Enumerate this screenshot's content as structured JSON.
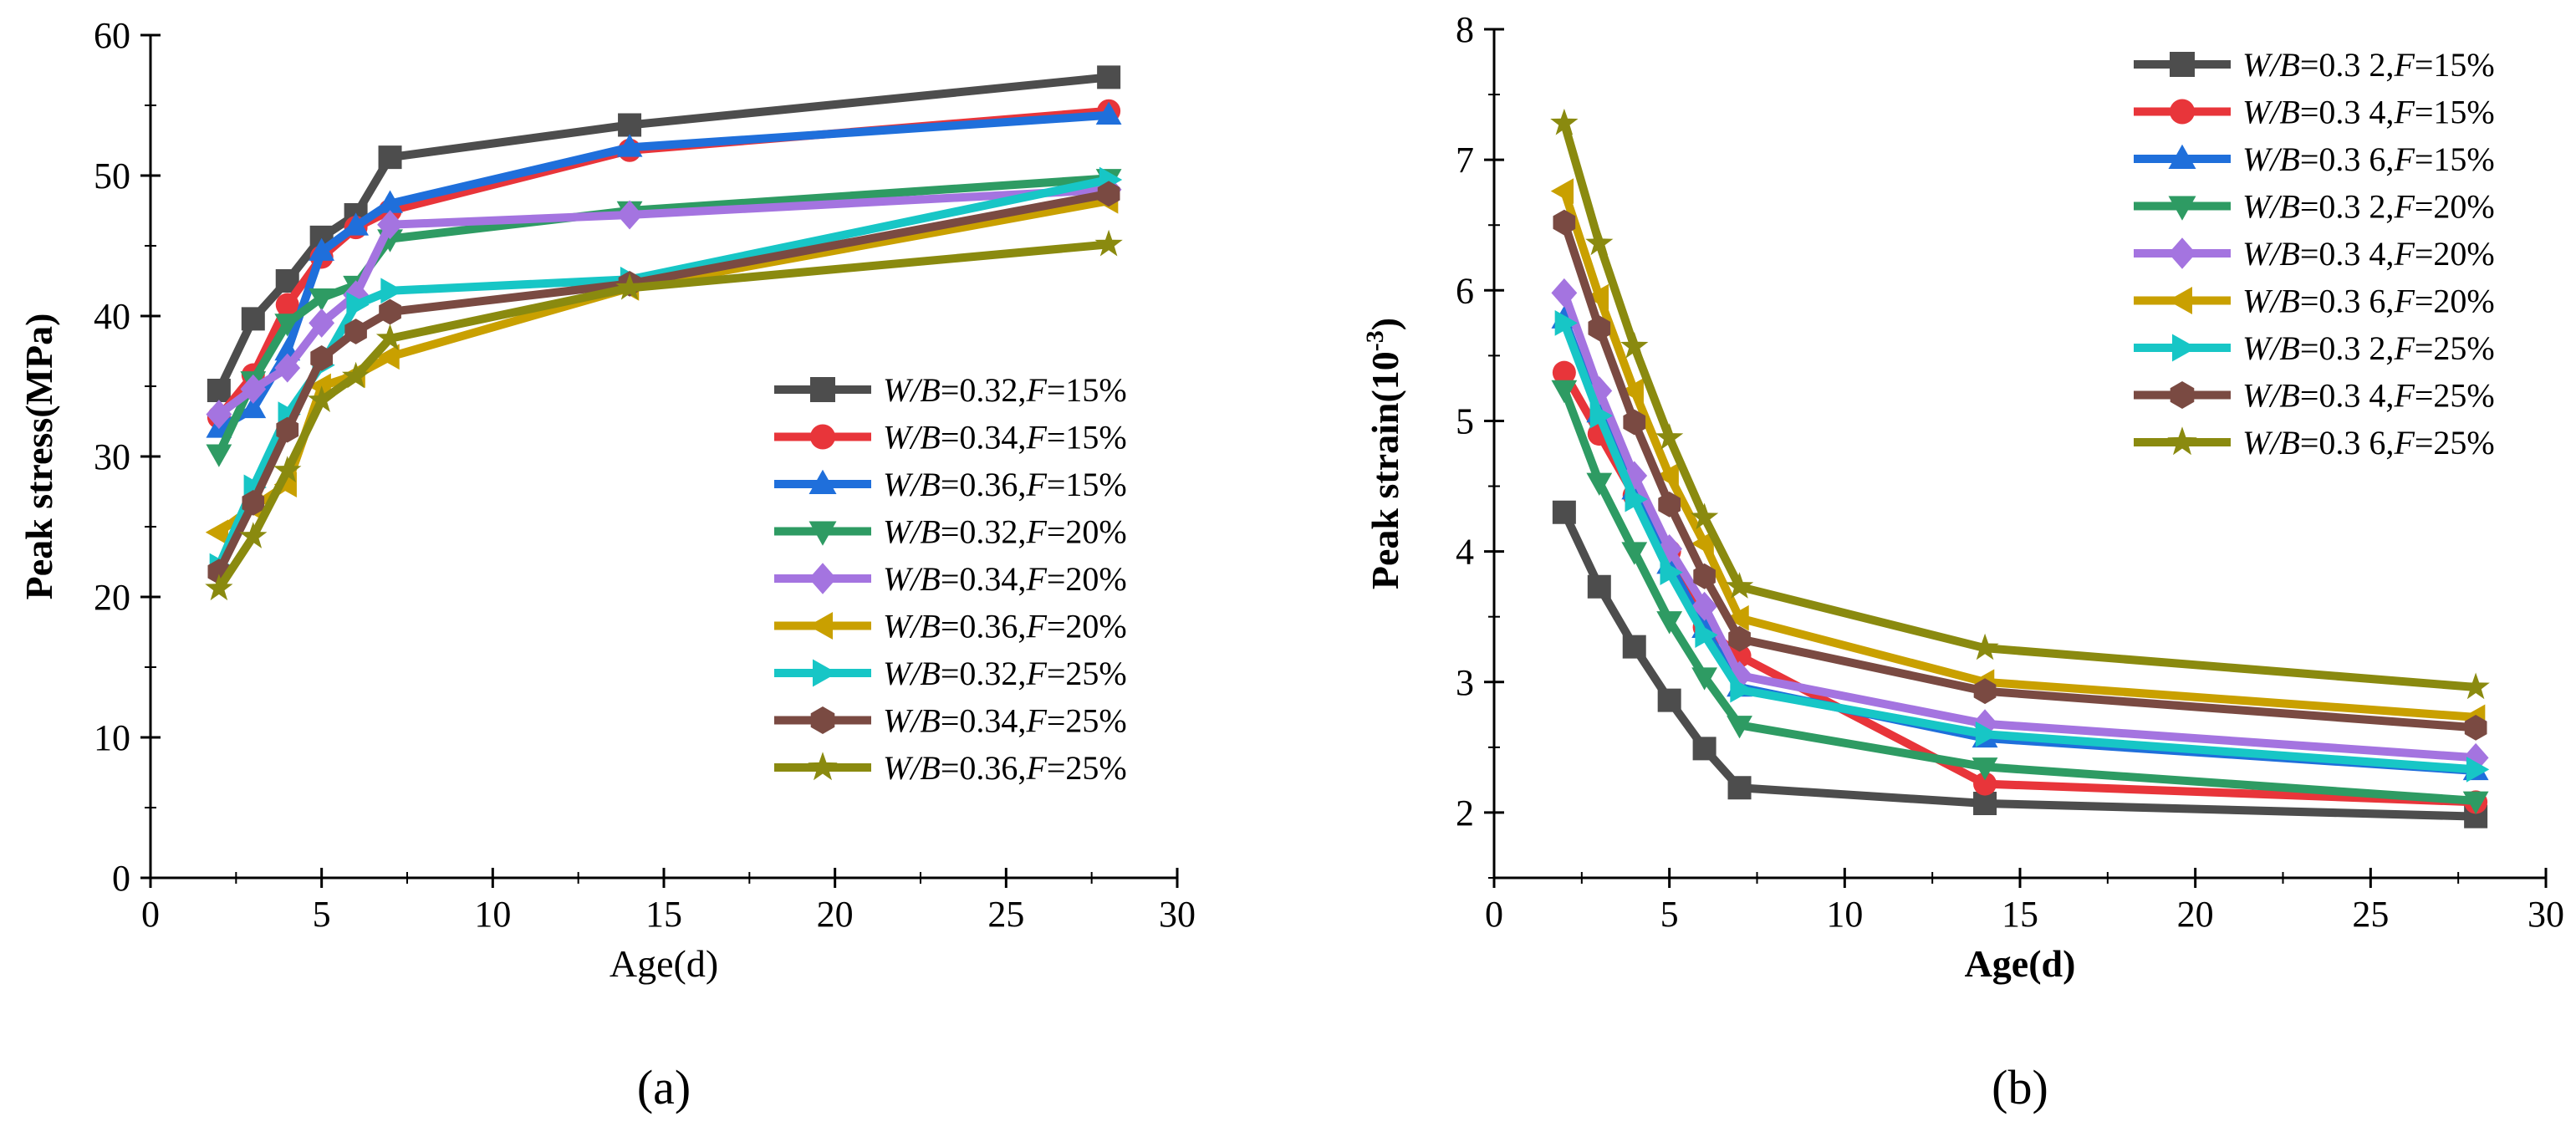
{
  "chart_data": [
    {
      "type": "line",
      "panel_label": "(a)",
      "xlabel": "Age(d)",
      "ylabel": "Peak stress(MPa)",
      "xlim": [
        0,
        30
      ],
      "ylim": [
        0,
        60
      ],
      "xticks": [
        0,
        5,
        10,
        15,
        20,
        25,
        30
      ],
      "yticks": [
        0,
        10,
        20,
        30,
        40,
        50,
        60
      ],
      "x": [
        2,
        3,
        4,
        5,
        6,
        7,
        14,
        28
      ],
      "grid": false,
      "legend_position": "bottom-right",
      "series": [
        {
          "name": "W/B=0.32,F=15%",
          "name_parts": [
            "W/B",
            "=0.32,",
            "F",
            "=15%"
          ],
          "color": "#4d4d4d",
          "marker": "square",
          "values": [
            34.7,
            39.8,
            42.5,
            45.6,
            47.2,
            51.3,
            53.6,
            57.0
          ]
        },
        {
          "name": "W/B=0.34,F=15%",
          "name_parts": [
            "W/B",
            "=0.34,",
            "F",
            "=15%"
          ],
          "color": "#e8353a",
          "marker": "circle",
          "values": [
            32.8,
            35.8,
            40.8,
            44.2,
            46.3,
            47.5,
            51.8,
            54.6
          ]
        },
        {
          "name": "W/B=0.36,F=15%",
          "name_parts": [
            "W/B",
            "=0.36,",
            "F",
            "=15%"
          ],
          "color": "#1f6fdb",
          "marker": "triangle-up",
          "values": [
            32.0,
            33.4,
            37.5,
            44.6,
            46.4,
            48.0,
            52.0,
            54.3
          ]
        },
        {
          "name": "W/B=0.32,F=20%",
          "name_parts": [
            "W/B",
            "=0.32,",
            "F",
            "=20%"
          ],
          "color": "#2e9b63",
          "marker": "triangle-down",
          "values": [
            30.2,
            35.4,
            39.5,
            41.3,
            42.2,
            45.5,
            47.5,
            49.8
          ]
        },
        {
          "name": "W/B=0.34,F=20%",
          "name_parts": [
            "W/B",
            "=0.34,",
            "F",
            "=20%"
          ],
          "color": "#a474e0",
          "marker": "diamond",
          "values": [
            33.0,
            34.8,
            36.3,
            39.5,
            41.5,
            46.5,
            47.2,
            49.0
          ]
        },
        {
          "name": "W/B=0.36,F=20%",
          "name_parts": [
            "W/B",
            "=0.36,",
            "F",
            "=20%"
          ],
          "color": "#c9a000",
          "marker": "triangle-left",
          "values": [
            24.6,
            26.4,
            28.0,
            35.0,
            35.8,
            37.1,
            42.0,
            48.2
          ]
        },
        {
          "name": "W/B=0.32,F=25%",
          "name_parts": [
            "W/B",
            "=0.32,",
            "F",
            "=25%"
          ],
          "color": "#17c6c6",
          "marker": "triangle-right",
          "values": [
            22.2,
            27.8,
            33.0,
            36.5,
            40.8,
            41.8,
            42.6,
            49.7
          ]
        },
        {
          "name": "W/B=0.34,F=25%",
          "name_parts": [
            "W/B",
            "=0.34,",
            "F",
            "=25%"
          ],
          "color": "#7a4a42",
          "marker": "hexagon",
          "values": [
            21.8,
            26.7,
            31.9,
            37.0,
            38.9,
            40.3,
            42.3,
            48.7
          ]
        },
        {
          "name": "W/B=0.36,F=25%",
          "name_parts": [
            "W/B",
            "=0.36,",
            "F",
            "=25%"
          ],
          "color": "#8a8a0f",
          "marker": "star",
          "values": [
            20.6,
            24.3,
            29.0,
            34.0,
            35.7,
            38.4,
            42.0,
            45.1
          ]
        }
      ]
    },
    {
      "type": "line",
      "panel_label": "(b)",
      "xlabel": "Age(d)",
      "ylabel": "Peak strain(10",
      "ylabel_sup": "-3",
      "ylabel_end": ")",
      "xlim": [
        0,
        30
      ],
      "ylim": [
        1.5,
        8
      ],
      "xticks": [
        0,
        5,
        10,
        15,
        20,
        25,
        30
      ],
      "yticks": [
        2,
        3,
        4,
        5,
        6,
        7,
        8
      ],
      "x": [
        2,
        3,
        4,
        5,
        6,
        7,
        14,
        28
      ],
      "grid": false,
      "legend_position": "top-right",
      "series": [
        {
          "name": "W/B=0.3 2,F=15%",
          "name_parts": [
            "W/B",
            "=0.3 2,",
            "F",
            "=15%"
          ],
          "color": "#4d4d4d",
          "marker": "square",
          "values": [
            4.3,
            3.73,
            3.27,
            2.86,
            2.49,
            2.19,
            2.07,
            1.97
          ]
        },
        {
          "name": "W/B=0.3 4,F=15%",
          "name_parts": [
            "W/B",
            "=0.3 4,",
            "F",
            "=15%"
          ],
          "color": "#e8353a",
          "marker": "circle",
          "values": [
            5.37,
            4.9,
            4.43,
            4.0,
            3.42,
            3.2,
            2.22,
            2.08
          ]
        },
        {
          "name": "W/B=0.3 6,F=15%",
          "name_parts": [
            "W/B",
            "=0.3 6,",
            "F",
            "=15%"
          ],
          "color": "#1f6fdb",
          "marker": "triangle-up",
          "values": [
            5.78,
            5.06,
            4.47,
            3.9,
            3.41,
            2.96,
            2.57,
            2.32
          ]
        },
        {
          "name": "W/B=0.3 2,F=20%",
          "name_parts": [
            "W/B",
            "=0.3 2,",
            "F",
            "=20%"
          ],
          "color": "#2e9b63",
          "marker": "triangle-down",
          "values": [
            5.24,
            4.53,
            4.0,
            3.47,
            3.04,
            2.67,
            2.35,
            2.09
          ]
        },
        {
          "name": "W/B=0.3 4,F=20%",
          "name_parts": [
            "W/B",
            "=0.3 4,",
            "F",
            "=20%"
          ],
          "color": "#a474e0",
          "marker": "diamond",
          "values": [
            5.98,
            5.23,
            4.58,
            4.02,
            3.58,
            3.05,
            2.68,
            2.42
          ]
        },
        {
          "name": "W/B=0.3 6,F=20%",
          "name_parts": [
            "W/B",
            "=0.3 6,",
            "F",
            "=20%"
          ],
          "color": "#c9a000",
          "marker": "triangle-left",
          "values": [
            6.76,
            5.95,
            5.23,
            4.58,
            4.06,
            3.49,
            3.0,
            2.73
          ]
        },
        {
          "name": "W/B=0.3 2,F=25%",
          "name_parts": [
            "W/B",
            "=0.3 2,",
            "F",
            "=25%"
          ],
          "color": "#17c6c6",
          "marker": "triangle-right",
          "values": [
            5.75,
            5.04,
            4.4,
            3.84,
            3.36,
            2.94,
            2.6,
            2.33
          ]
        },
        {
          "name": "W/B=0.3 4,F=25%",
          "name_parts": [
            "W/B",
            "=0.3 4,",
            "F",
            "=25%"
          ],
          "color": "#7a4a42",
          "marker": "hexagon",
          "values": [
            6.52,
            5.71,
            4.99,
            4.36,
            3.81,
            3.33,
            2.93,
            2.65
          ]
        },
        {
          "name": "W/B=0.3 6,F=25%",
          "name_parts": [
            "W/B",
            "=0.3 6,",
            "F",
            "=25%"
          ],
          "color": "#8a8a0f",
          "marker": "star",
          "values": [
            7.28,
            6.36,
            5.57,
            4.87,
            4.26,
            3.73,
            3.26,
            2.96
          ]
        }
      ]
    }
  ]
}
